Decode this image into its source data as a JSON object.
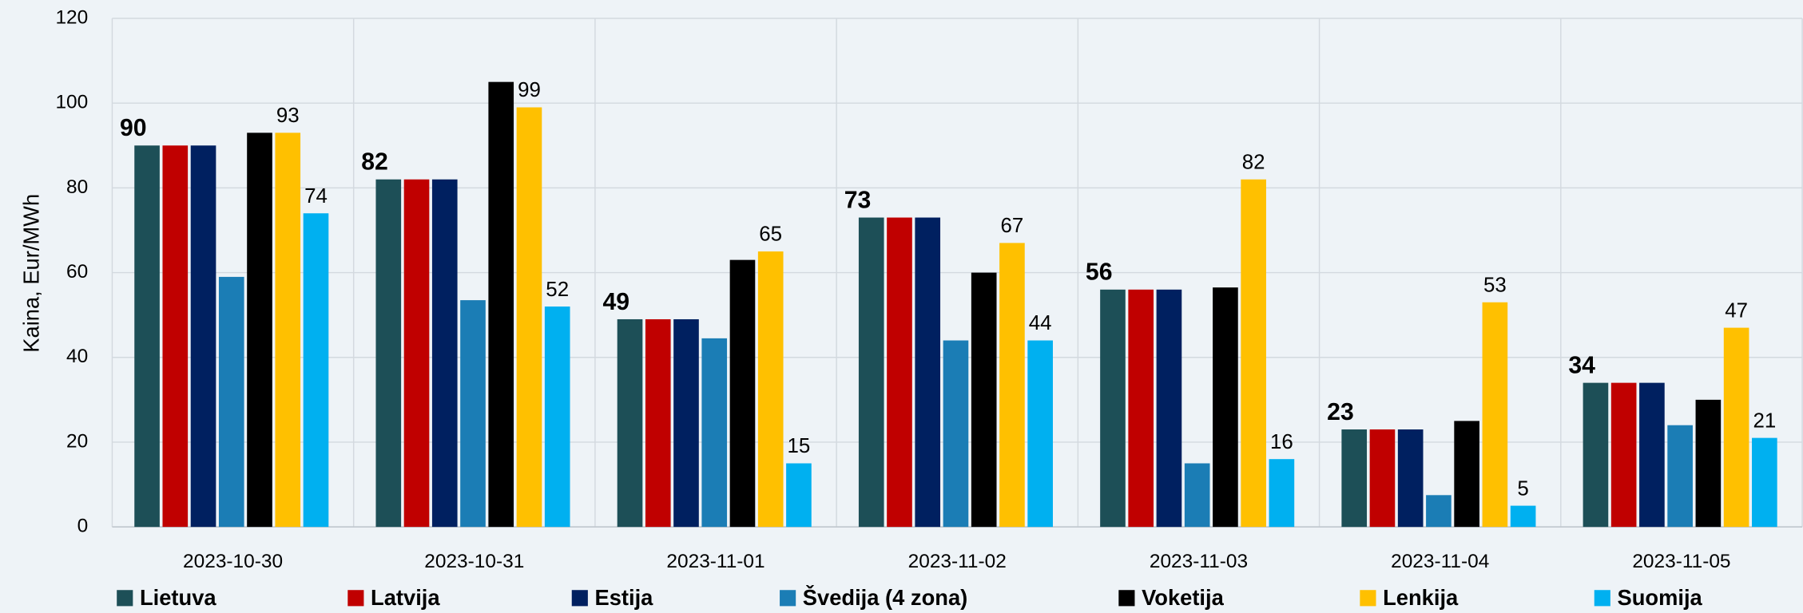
{
  "chart_data": {
    "type": "bar",
    "y_label": "Kaina, Eur/MWh",
    "categories": [
      "2023-10-30",
      "2023-10-31",
      "2023-11-01",
      "2023-11-02",
      "2023-11-03",
      "2023-11-04",
      "2023-11-05"
    ],
    "series": [
      {
        "name": "Lietuva",
        "color": "#1d4f57",
        "values": [
          90,
          82,
          49,
          73,
          56,
          23,
          34
        ],
        "value_labels": [
          "90",
          "82",
          "49",
          "73",
          "56",
          "23",
          "34"
        ]
      },
      {
        "name": "Latvija",
        "color": "#c00000",
        "values": [
          90,
          82,
          49,
          73,
          56,
          23,
          34
        ]
      },
      {
        "name": "Estija",
        "color": "#002060",
        "values": [
          90,
          82,
          49,
          73,
          56,
          23,
          34
        ]
      },
      {
        "name": "Švedija (4 zona)",
        "color": "#1b7db5",
        "values": [
          59,
          53.5,
          44.5,
          44,
          15,
          7.5,
          24
        ]
      },
      {
        "name": "Voketija",
        "color": "#000000",
        "values": [
          93,
          105,
          63,
          60,
          56.5,
          25,
          30
        ]
      },
      {
        "name": "Lenkija",
        "color": "#ffc000",
        "values": [
          93,
          99,
          65,
          67,
          82,
          53,
          47
        ],
        "value_labels": [
          "93",
          "99",
          "65",
          "67",
          "82",
          "53",
          "47"
        ]
      },
      {
        "name": "Suomija",
        "color": "#00b0f0",
        "values": [
          74,
          52,
          15,
          44,
          16,
          5,
          21
        ],
        "value_labels": [
          "74",
          "52",
          "15",
          "44",
          "16",
          "5",
          "21"
        ]
      }
    ],
    "ylim": [
      0,
      120
    ],
    "yticks": [
      0,
      20,
      40,
      60,
      80,
      100,
      120
    ],
    "grid": true
  }
}
